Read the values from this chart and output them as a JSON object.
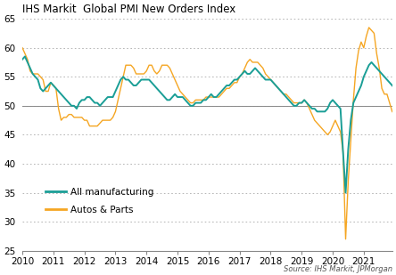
{
  "title": "IHS Markit  Global PMI New Orders Index",
  "source_text": "Source: IHS Markit, JPMorgan",
  "ylim": [
    25,
    65
  ],
  "yticks": [
    25,
    30,
    35,
    40,
    45,
    50,
    55,
    60,
    65
  ],
  "xlim_start": 2010.0,
  "xlim_end": 2021.92,
  "xtick_labels": [
    "2010",
    "2011",
    "2012",
    "2013",
    "2014",
    "2015",
    "2016",
    "2017",
    "2018",
    "2019",
    "2020",
    "2021"
  ],
  "color_manufacturing": "#1a9e96",
  "color_autos": "#f5a623",
  "legend_manufacturing": "All manufacturing",
  "legend_autos": "Autos & Parts",
  "hline_y": 50,
  "manufacturing": [
    58.0,
    58.5,
    57.5,
    56.5,
    55.5,
    55.0,
    54.5,
    53.0,
    52.5,
    53.0,
    53.5,
    54.0,
    53.5,
    53.0,
    52.5,
    52.0,
    51.5,
    51.0,
    50.5,
    50.0,
    50.0,
    49.5,
    50.5,
    51.0,
    51.0,
    51.5,
    51.5,
    51.0,
    50.5,
    50.5,
    50.0,
    50.5,
    51.0,
    51.5,
    51.5,
    51.5,
    52.5,
    53.5,
    54.5,
    55.0,
    54.5,
    54.5,
    54.0,
    53.5,
    53.5,
    54.0,
    54.5,
    54.5,
    54.5,
    54.5,
    54.0,
    53.5,
    53.0,
    52.5,
    52.0,
    51.5,
    51.0,
    51.0,
    51.5,
    52.0,
    51.5,
    51.5,
    51.5,
    51.0,
    50.5,
    50.0,
    50.0,
    50.5,
    50.5,
    50.5,
    51.0,
    51.0,
    51.5,
    52.0,
    51.5,
    51.5,
    52.0,
    52.5,
    53.0,
    53.5,
    53.5,
    54.0,
    54.5,
    54.5,
    55.0,
    55.5,
    56.0,
    55.5,
    55.5,
    56.0,
    56.5,
    56.0,
    55.5,
    55.0,
    54.5,
    54.5,
    54.5,
    54.0,
    53.5,
    53.0,
    52.5,
    52.0,
    51.5,
    51.0,
    50.5,
    50.0,
    50.0,
    50.5,
    50.5,
    51.0,
    50.5,
    50.0,
    49.5,
    49.5,
    49.0,
    49.0,
    49.0,
    49.0,
    49.5,
    50.5,
    51.0,
    50.5,
    50.0,
    49.5,
    42.0,
    35.0,
    42.5,
    47.5,
    50.5,
    51.5,
    52.5,
    53.5,
    55.0,
    56.0,
    57.0,
    57.5,
    57.0,
    56.5,
    56.0,
    55.5,
    55.0,
    54.5,
    54.0,
    53.5,
    53.0
  ],
  "autos": [
    60.0,
    59.0,
    58.0,
    56.0,
    55.5,
    55.5,
    55.5,
    55.0,
    54.5,
    52.5,
    52.5,
    54.0,
    53.5,
    53.0,
    49.5,
    47.5,
    48.0,
    48.0,
    48.5,
    48.5,
    48.0,
    48.0,
    48.0,
    48.0,
    47.5,
    47.5,
    46.5,
    46.5,
    46.5,
    46.5,
    47.0,
    47.5,
    47.5,
    47.5,
    47.5,
    48.0,
    49.0,
    51.0,
    53.0,
    55.0,
    57.0,
    57.0,
    57.0,
    56.5,
    55.5,
    55.5,
    55.5,
    55.5,
    56.0,
    57.0,
    57.0,
    56.0,
    55.5,
    56.0,
    57.0,
    57.0,
    57.0,
    56.5,
    55.5,
    54.5,
    53.5,
    52.5,
    52.0,
    51.5,
    51.0,
    50.5,
    50.5,
    51.0,
    51.0,
    51.0,
    51.0,
    51.5,
    51.5,
    51.5,
    51.5,
    51.5,
    51.5,
    52.0,
    52.5,
    53.0,
    53.0,
    53.5,
    54.0,
    54.0,
    55.0,
    55.5,
    56.5,
    57.5,
    58.0,
    57.5,
    57.5,
    57.5,
    57.0,
    56.5,
    55.5,
    55.0,
    54.5,
    54.0,
    53.5,
    53.0,
    52.5,
    52.0,
    52.0,
    51.5,
    51.0,
    50.5,
    50.5,
    50.5,
    50.5,
    51.0,
    50.5,
    49.5,
    48.5,
    47.5,
    47.0,
    46.5,
    46.0,
    45.5,
    45.0,
    45.5,
    46.5,
    47.5,
    46.5,
    45.5,
    42.0,
    27.0,
    37.0,
    44.0,
    51.0,
    56.5,
    59.5,
    61.0,
    60.0,
    62.0,
    63.5,
    63.0,
    62.5,
    59.0,
    56.5,
    53.0,
    52.0,
    52.0,
    50.5,
    49.0,
    48.5
  ]
}
